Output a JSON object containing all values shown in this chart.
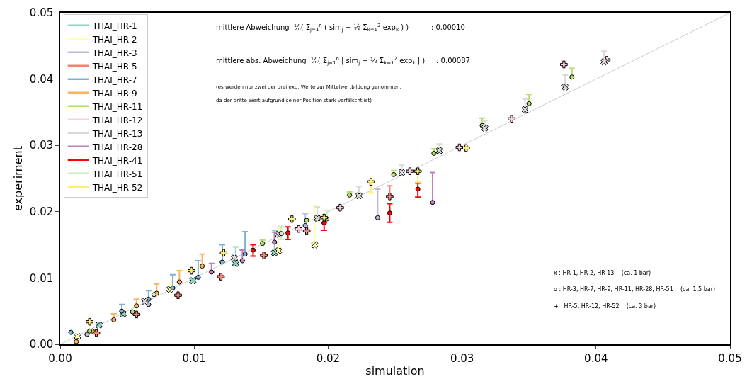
{
  "chart_data": {
    "type": "scatter",
    "xlabel": "simulation",
    "ylabel": "experiment",
    "xlim": [
      0,
      0.05
    ],
    "ylim": [
      0,
      0.05
    ],
    "xticks": [
      {
        "value": 0,
        "label": "0.00"
      },
      {
        "value": 0.01,
        "label": "0.01"
      },
      {
        "value": 0.02,
        "label": "0.02"
      },
      {
        "value": 0.03,
        "label": "0.03"
      },
      {
        "value": 0.04,
        "label": "0.04"
      },
      {
        "value": 0.05,
        "label": "0.05"
      }
    ],
    "yticks": [
      {
        "value": 0,
        "label": "0.00"
      },
      {
        "value": 0.01,
        "label": "0.01"
      },
      {
        "value": 0.02,
        "label": "0.02"
      },
      {
        "value": 0.03,
        "label": "0.03"
      },
      {
        "value": 0.04,
        "label": "0.04"
      },
      {
        "value": 0.05,
        "label": "0.05"
      }
    ],
    "grid": false,
    "legend": "top left",
    "series": [
      {
        "type": "line",
        "color": "#cccccc",
        "x": [
          0,
          0.05
        ],
        "values": [
          0,
          0.05
        ]
      },
      {
        "name": "THAI_HR-1",
        "color": "#8dd3c7",
        "marker": "x",
        "x": [
          0.0131,
          0.016,
          0.0099,
          0.0047,
          0.0029
        ],
        "values": [
          0.0122,
          0.0138,
          0.0096,
          0.0046,
          0.0029
        ],
        "errors": [
          [
            0.0122,
            0.0147
          ],
          [
            0.0138,
            0.0172
          ],
          null,
          null,
          null
        ]
      },
      {
        "name": "THAI_HR-2",
        "color": "#ffffb3",
        "marker": "x",
        "x": [
          0.019,
          0.0163,
          0.0082,
          0.0013
        ],
        "values": [
          0.015,
          0.0141,
          0.0083,
          0.0012
        ],
        "errors": [
          [
            0.015,
            0.0209
          ],
          [
            0.0141,
            0.0175
          ],
          [
            0.0083,
            0.0092
          ],
          null
        ]
      },
      {
        "name": "THAI_HR-3",
        "color": "#bebada",
        "marker": "circle",
        "x": [
          0.0237,
          0.0183,
          0.0066,
          0.002
        ],
        "values": [
          0.0191,
          0.0179,
          0.006,
          0.0015
        ],
        "errors": [
          [
            0.0191,
            0.0234
          ],
          [
            0.0179,
            0.0197
          ],
          null,
          null
        ]
      },
      {
        "name": "THAI_HR-5",
        "color": "#fb8072",
        "marker": "cross",
        "x": [
          0.0246,
          0.0184,
          0.0152,
          0.012,
          0.0088,
          0.0057,
          0.0027
        ],
        "values": [
          0.0223,
          0.0171,
          0.0134,
          0.0102,
          0.0074,
          0.0045,
          0.0017
        ],
        "errors": [
          [
            0.0223,
            0.0239
          ],
          null,
          null,
          null,
          null,
          null,
          null
        ]
      },
      {
        "name": "THAI_HR-7",
        "color": "#80b1d3",
        "marker": "circle",
        "x": [
          0.0138,
          0.0121,
          0.0103,
          0.0084,
          0.0066,
          0.0046,
          0.0008
        ],
        "values": [
          0.0136,
          0.0124,
          0.0101,
          0.0085,
          0.0068,
          0.005,
          0.0018
        ],
        "errors": [
          [
            0.0136,
            0.017
          ],
          [
            0.0124,
            0.015
          ],
          [
            0.0101,
            0.0126
          ],
          [
            0.0085,
            0.0105
          ],
          [
            0.0068,
            0.0081
          ],
          [
            0.005,
            0.006
          ],
          null
        ]
      },
      {
        "name": "THAI_HR-9",
        "color": "#fdb462",
        "marker": "circle",
        "x": [
          0.0106,
          0.0089,
          0.0072,
          0.0057,
          0.004,
          0.0024,
          0.0012
        ],
        "values": [
          0.0118,
          0.0094,
          0.0077,
          0.0058,
          0.0037,
          0.002,
          0.0004
        ],
        "errors": [
          [
            0.0118,
            0.0136
          ],
          [
            0.0094,
            0.0111
          ],
          [
            0.0077,
            0.0091
          ],
          [
            0.0058,
            0.0068
          ],
          [
            0.0037,
            0.0046
          ],
          null,
          null
        ]
      },
      {
        "name": "THAI_HR-11",
        "color": "#b3de69",
        "marker": "circle",
        "x": [
          0.0382,
          0.035,
          0.0315,
          0.0279,
          0.0249,
          0.0216,
          0.0184,
          0.0151,
          0.0054,
          0.0022
        ],
        "values": [
          0.0403,
          0.0363,
          0.033,
          0.0288,
          0.0256,
          0.0225,
          0.0187,
          0.0152,
          0.0049,
          0.002
        ],
        "errors": [
          [
            0.0403,
            0.0416
          ],
          [
            0.0363,
            0.0377
          ],
          [
            0.033,
            0.0341
          ],
          [
            0.0288,
            0.0295
          ],
          [
            0.0256,
            0.0262
          ],
          [
            0.0225,
            0.023
          ],
          null,
          [
            0.0152,
            0.0157
          ],
          null,
          null
        ]
      },
      {
        "name": "THAI_HR-12",
        "color": "#fccde5",
        "marker": "cross",
        "x": [
          0.0408,
          0.0376,
          0.0337,
          0.0298,
          0.0261,
          0.0209,
          0.0178
        ],
        "values": [
          0.0429,
          0.0422,
          0.034,
          0.0297,
          0.0261,
          0.0206,
          0.0174
        ],
        "errors": [
          null,
          [
            0.0422,
            0.0428
          ],
          null,
          null,
          null,
          null,
          null
        ]
      },
      {
        "name": "THAI_HR-13",
        "color": "#d9d9d9",
        "marker": "x",
        "x": [
          0.0406,
          0.0377,
          0.0347,
          0.0317,
          0.0283,
          0.0255,
          0.0223,
          0.0192,
          0.0163,
          0.013,
          0.0063
        ],
        "values": [
          0.0426,
          0.0388,
          0.0354,
          0.0326,
          0.0292,
          0.0259,
          0.0224,
          0.019,
          0.0166,
          0.013,
          0.0065
        ],
        "errors": [
          [
            0.0426,
            0.0442
          ],
          [
            0.0388,
            0.0406
          ],
          [
            0.0354,
            0.037
          ],
          [
            0.0326,
            0.0337
          ],
          [
            0.0292,
            0.0302
          ],
          [
            0.0259,
            0.027
          ],
          [
            0.0224,
            0.0238
          ],
          [
            0.019,
            0.0207
          ],
          null,
          null,
          null
        ]
      },
      {
        "name": "THAI_HR-28",
        "color": "#bc80bd",
        "marker": "circle",
        "x": [
          0.0278,
          0.016,
          0.0136,
          0.0113
        ],
        "values": [
          0.0214,
          0.0154,
          0.0126,
          0.0109
        ],
        "errors": [
          [
            0.0214,
            0.0259
          ],
          [
            0.0154,
            0.0169
          ],
          [
            0.0126,
            0.0142
          ],
          [
            0.0109,
            0.0122
          ]
        ]
      },
      {
        "name": "THAI_HR-41",
        "color": "#ff0000",
        "marker": "circle",
        "x": [
          0.0267,
          0.0246,
          0.0197,
          0.017,
          0.0144
        ],
        "values": [
          0.0234,
          0.0198,
          0.0183,
          0.0168,
          0.0142
        ],
        "errors": [
          [
            0.0222,
            0.0243
          ],
          [
            0.0184,
            0.0212
          ],
          [
            0.0172,
            0.0183
          ],
          [
            0.0158,
            0.0177
          ],
          [
            0.0133,
            0.015
          ]
        ]
      },
      {
        "name": "THAI_HR-51",
        "color": "#ccebc5",
        "marker": "circle",
        "x": [
          0.0199,
          0.0165,
          0.007
        ],
        "values": [
          0.0189,
          0.0167,
          0.0075
        ],
        "errors": [
          [
            0.0189,
            0.0202
          ],
          [
            0.0158,
            0.0178
          ],
          null
        ]
      },
      {
        "name": "THAI_HR-52",
        "color": "#ffed6f",
        "marker": "cross",
        "x": [
          0.0303,
          0.0267,
          0.0232,
          0.0197,
          0.0173,
          0.0122,
          0.0098,
          0.0022
        ],
        "values": [
          0.0296,
          0.0261,
          0.0245,
          0.0191,
          0.0189,
          0.0138,
          0.0111,
          0.0034
        ],
        "errors": [
          null,
          [
            0.0245,
            0.0261
          ],
          [
            0.0228,
            0.0245
          ],
          null,
          null,
          null,
          null,
          null
        ]
      }
    ],
    "annotations": [
      "mittlere Abweichung  ¹⁄ₙ( Σ$_{j=1}$$^{n}$ ( sim$_{j}$ − ½ Σ$_{k=1}$$^{2}$ exp$_{k}$ ) )          : 0.00010",
      "mittlere abs. Abweichung  ¹⁄ₙ( Σ$_{j=1}$$^{n}$ | sim$_{j}$ − ½ Σ$_{k=1}$$^{2}$ exp$_{k}$ | )     : 0.00087",
      "(es werden nur zwei der drei exp. Werte zur Mittelwertbildung genommen,",
      "da der dritte Wert aufgrund seiner Position stark verfälscht ist)",
      "x : HR-1, HR-2, HR-13    (ca. 1 bar)",
      "o : HR-3, HR-7, HR-9, HR-11, HR-28, HR-51    (ca. 1.5 bar)",
      "+ : HR-5, HR-12, HR-52    (ca. 3 bar)"
    ]
  }
}
